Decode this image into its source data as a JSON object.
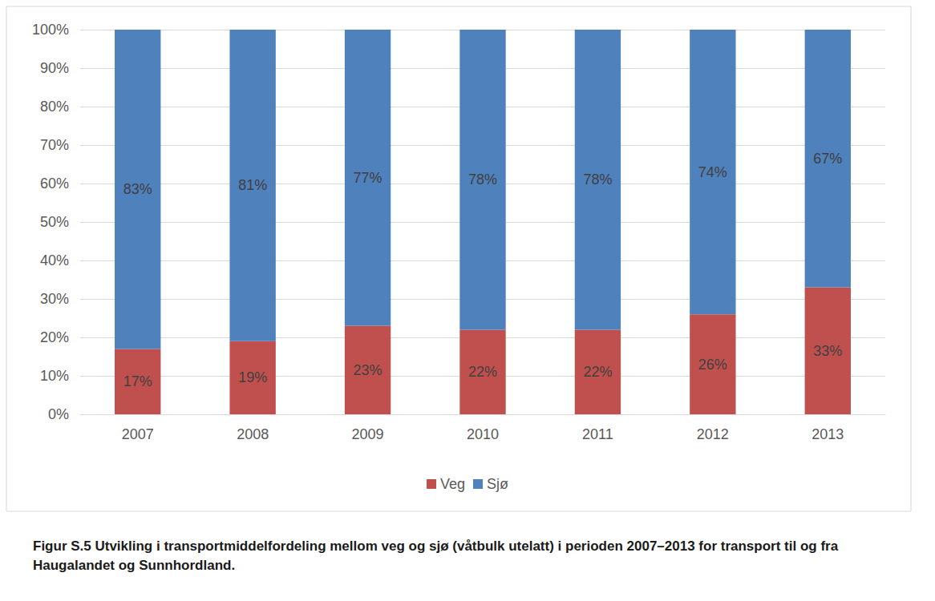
{
  "chart_data": {
    "type": "bar",
    "title": "Figur S.5 Utvikling i transportmiddelfordeling mellom veg og sjø (våtbulk utelatt) i perioden 2007–2013 for transport til og fra Haugalandet og Sunnhordland.",
    "categories": [
      "2007",
      "2008",
      "2009",
      "2010",
      "2011",
      "2012",
      "2013"
    ],
    "series": [
      {
        "name": "Veg",
        "color": "#c0504d",
        "values": [
          17,
          19,
          23,
          22,
          22,
          26,
          33
        ],
        "value_labels": [
          "17%",
          "19%",
          "23%",
          "22%",
          "22%",
          "26%",
          "33%"
        ]
      },
      {
        "name": "Sjø",
        "color": "#4f81bd",
        "values": [
          83,
          81,
          77,
          78,
          78,
          74,
          67
        ],
        "value_labels": [
          "83%",
          "81%",
          "77%",
          "78%",
          "78%",
          "74%",
          "67%"
        ]
      }
    ],
    "ylim": [
      0,
      100
    ],
    "yticks": [
      {
        "value": 0,
        "label": "0%"
      },
      {
        "value": 10,
        "label": "10%"
      },
      {
        "value": 20,
        "label": "20%"
      },
      {
        "value": 30,
        "label": "30%"
      },
      {
        "value": 40,
        "label": "40%"
      },
      {
        "value": 50,
        "label": "50%"
      },
      {
        "value": 60,
        "label": "60%"
      },
      {
        "value": 70,
        "label": "70%"
      },
      {
        "value": 80,
        "label": "80%"
      },
      {
        "value": 90,
        "label": "90%"
      },
      {
        "value": 100,
        "label": "100%"
      }
    ],
    "stacked": true,
    "data_labels": true,
    "grid": true,
    "legend": "bottom"
  }
}
